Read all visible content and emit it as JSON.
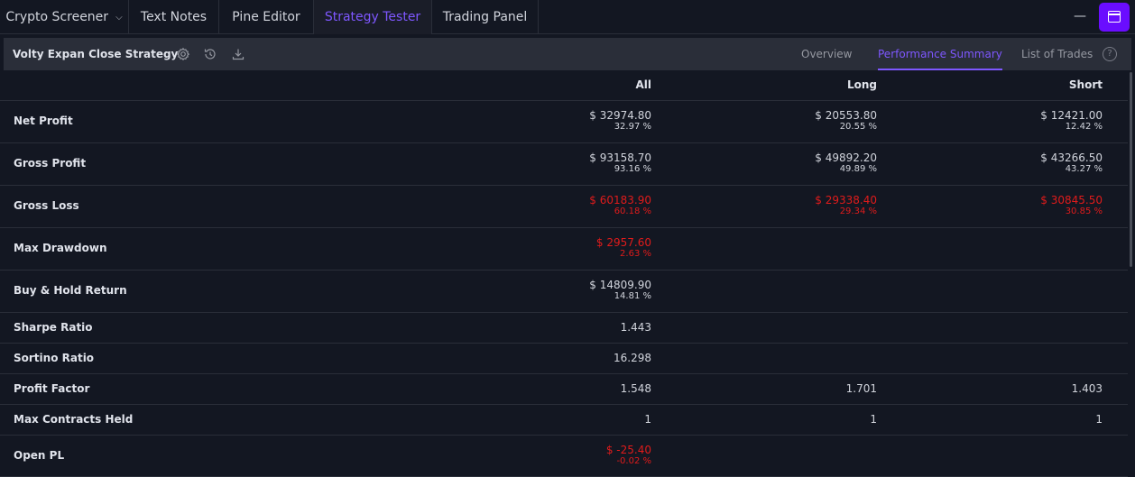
{
  "tabs": [
    {
      "label": "Crypto Screener",
      "active": false,
      "dropdown": true
    },
    {
      "label": "Text Notes",
      "active": false
    },
    {
      "label": "Pine Editor",
      "active": false
    },
    {
      "label": "Strategy Tester",
      "active": true
    },
    {
      "label": "Trading Panel",
      "active": false
    }
  ],
  "window_controls": {
    "minimize_glyph": "—",
    "maximize_icon": "window-maximize-icon"
  },
  "strategy": {
    "title": "Volty Expan Close Strategy",
    "icons": [
      "settings-icon",
      "replay-icon",
      "download-icon"
    ]
  },
  "view_tabs": [
    {
      "label": "Overview",
      "active": false
    },
    {
      "label": "Performance Summary",
      "active": true
    },
    {
      "label": "List of Trades",
      "active": false
    }
  ],
  "help_glyph": "?",
  "columns": [
    "All",
    "Long",
    "Short"
  ],
  "rows": [
    {
      "label": "Net Profit",
      "all": {
        "value": "$ 32974.80",
        "pct": "32.97 %",
        "neg": false
      },
      "long": {
        "value": "$ 20553.80",
        "pct": "20.55 %",
        "neg": false
      },
      "short": {
        "value": "$ 12421.00",
        "pct": "12.42 %",
        "neg": false
      }
    },
    {
      "label": "Gross Profit",
      "all": {
        "value": "$ 93158.70",
        "pct": "93.16 %",
        "neg": false
      },
      "long": {
        "value": "$ 49892.20",
        "pct": "49.89 %",
        "neg": false
      },
      "short": {
        "value": "$ 43266.50",
        "pct": "43.27 %",
        "neg": false
      }
    },
    {
      "label": "Gross Loss",
      "all": {
        "value": "$ 60183.90",
        "pct": "60.18 %",
        "neg": true
      },
      "long": {
        "value": "$ 29338.40",
        "pct": "29.34 %",
        "neg": true
      },
      "short": {
        "value": "$ 30845.50",
        "pct": "30.85 %",
        "neg": true
      }
    },
    {
      "label": "Max Drawdown",
      "all": {
        "value": "$ 2957.60",
        "pct": "2.63 %",
        "neg": true
      },
      "long": null,
      "short": null
    },
    {
      "label": "Buy & Hold Return",
      "all": {
        "value": "$ 14809.90",
        "pct": "14.81 %",
        "neg": false
      },
      "long": null,
      "short": null
    },
    {
      "label": "Sharpe Ratio",
      "all": {
        "value": "1.443",
        "pct": null,
        "neg": false
      },
      "long": null,
      "short": null
    },
    {
      "label": "Sortino Ratio",
      "all": {
        "value": "16.298",
        "pct": null,
        "neg": false
      },
      "long": null,
      "short": null
    },
    {
      "label": "Profit Factor",
      "all": {
        "value": "1.548",
        "pct": null,
        "neg": false
      },
      "long": {
        "value": "1.701",
        "pct": null,
        "neg": false
      },
      "short": {
        "value": "1.403",
        "pct": null,
        "neg": false
      }
    },
    {
      "label": "Max Contracts Held",
      "all": {
        "value": "1",
        "pct": null,
        "neg": false
      },
      "long": {
        "value": "1",
        "pct": null,
        "neg": false
      },
      "short": {
        "value": "1",
        "pct": null,
        "neg": false
      }
    },
    {
      "label": "Open PL",
      "all": {
        "value": "$ -25.40",
        "pct": "-0.02 %",
        "neg": true
      },
      "long": null,
      "short": null
    }
  ],
  "colors": {
    "accent": "#7e57ff",
    "accent_button": "#6a0dff",
    "negative": "#e01b1b",
    "background": "#131722",
    "header_bar": "#2a2e39"
  }
}
